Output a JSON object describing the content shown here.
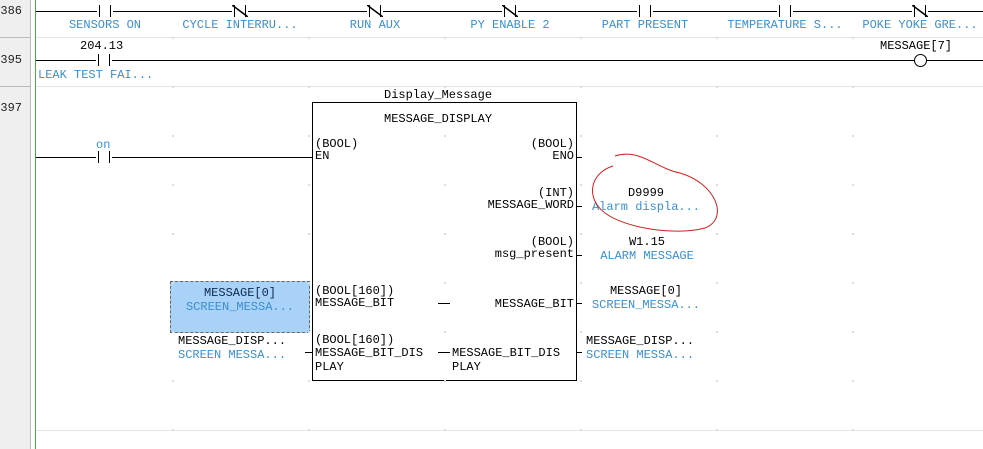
{
  "rows": [
    "386",
    "395",
    "397"
  ],
  "rung386": {
    "contacts": [
      {
        "label": "SENSORS ON",
        "type": "NO"
      },
      {
        "label": "CYCLE INTERRU...",
        "type": "NC"
      },
      {
        "label": "RUN AUX",
        "type": "NC"
      },
      {
        "label": "PY ENABLE 2",
        "type": "NC"
      },
      {
        "label": "PART PRESENT",
        "type": "NO"
      },
      {
        "label": "TEMPERATURE S...",
        "type": "NO"
      },
      {
        "label": "POKE YOKE GRE...",
        "type": "NC"
      }
    ]
  },
  "rung395": {
    "address": "204.13",
    "label": "LEAK TEST FAI...",
    "coil": "MESSAGE[7]"
  },
  "rung397": {
    "enable_label": "on",
    "instance": "Display_Message",
    "block_type": "MESSAGE_DISPLAY",
    "inputs": [
      {
        "type": "(BOOL)",
        "name": "EN"
      },
      {
        "type": "(BOOL[160])",
        "name": "MESSAGE_BIT"
      },
      {
        "type": "(BOOL[160])",
        "name": "MESSAGE_BIT_DIS",
        "name2": "PLAY"
      }
    ],
    "outputs": [
      {
        "type": "(BOOL)",
        "name": "ENO"
      },
      {
        "type": "(INT)",
        "name": "MESSAGE_WORD"
      },
      {
        "type": "(BOOL)",
        "name": "msg_present"
      },
      {
        "type": "",
        "name": "MESSAGE_BIT"
      },
      {
        "type": "",
        "name": "MESSAGE_BIT_DIS",
        "name2": "PLAY"
      }
    ],
    "in_vars": [
      {
        "var": "MESSAGE[0]",
        "comment": "SCREEN_MESSA..."
      },
      {
        "var": "MESSAGE_DISP...",
        "comment": "SCREEN MESSA..."
      }
    ],
    "out_vars": [
      {
        "var": "D9999",
        "comment": "Alarm displa..."
      },
      {
        "var": "W1.15",
        "comment": "ALARM MESSAGE"
      },
      {
        "var": "MESSAGE[0]",
        "comment": "SCREEN_MESSA..."
      },
      {
        "var": "MESSAGE_DISP...",
        "comment": "SCREEN MESSA..."
      }
    ]
  },
  "colors": {
    "comment": "#3a8fd0",
    "selection": "#a8d2f8",
    "annotation": "#d02020",
    "rail": "#4caa4c"
  }
}
